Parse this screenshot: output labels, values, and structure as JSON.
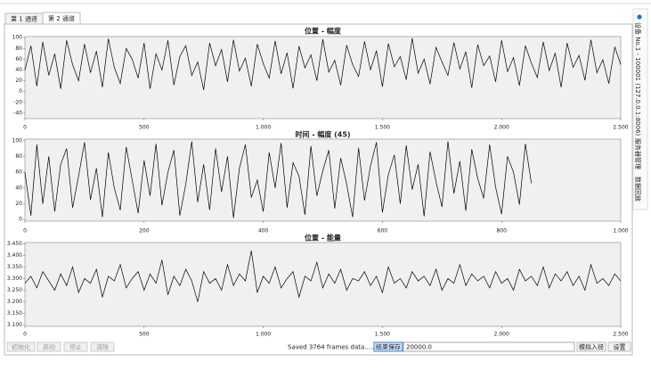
{
  "tabs": [
    "第 1 通道",
    "第 2 通道"
  ],
  "side_tabs": [
    "设备 No.1 - 100001 (127.0.0.1:8006)",
    "服务器管理",
    "数据回放"
  ],
  "toolbar": {
    "buttons": [
      "初始化",
      "启动",
      "停止",
      "清除"
    ],
    "status": "Saved 3764 frames data......",
    "save_button": "结束保存",
    "input": "20000.0",
    "simulate_button": "模拟入径",
    "settings_button": "设置"
  },
  "chart_data": [
    {
      "type": "line",
      "title": "位置 - 幅度",
      "color": "#000000",
      "x": [
        0,
        25,
        50,
        75,
        100,
        125,
        150,
        175,
        200,
        225,
        250,
        275,
        300,
        325,
        350,
        375,
        400,
        425,
        450,
        475,
        500,
        525,
        550,
        575,
        600,
        625,
        650,
        675,
        700,
        725,
        750,
        775,
        800,
        825,
        850,
        875,
        900,
        925,
        950,
        975,
        1000,
        1025,
        1050,
        1075,
        1100,
        1125,
        1150,
        1175,
        1200,
        1225,
        1250,
        1275,
        1300,
        1325,
        1350,
        1375,
        1400,
        1425,
        1450,
        1475,
        1500,
        1525,
        1550,
        1575,
        1600,
        1625,
        1650,
        1675,
        1700,
        1725,
        1750,
        1775,
        1800,
        1825,
        1850,
        1875,
        1900,
        1925,
        1950,
        1975,
        2000,
        2025,
        2050,
        2075,
        2100,
        2125,
        2150,
        2175,
        2200,
        2225,
        2250,
        2275,
        2300,
        2325,
        2350,
        2375,
        2400,
        2425,
        2450,
        2475,
        2500
      ],
      "values": [
        40,
        85,
        10,
        92,
        30,
        70,
        5,
        95,
        50,
        20,
        88,
        35,
        75,
        8,
        98,
        45,
        15,
        80,
        60,
        25,
        90,
        5,
        70,
        40,
        95,
        12,
        65,
        85,
        30,
        55,
        3,
        90,
        48,
        78,
        18,
        96,
        38,
        62,
        10,
        88,
        52,
        25,
        94,
        33,
        72,
        6,
        84,
        44,
        68,
        20,
        97,
        36,
        58,
        12,
        86,
        50,
        28,
        93,
        40,
        76,
        9,
        89,
        46,
        65,
        22,
        99,
        34,
        60,
        14,
        82,
        55,
        30,
        91,
        42,
        74,
        7,
        87,
        48,
        66,
        18,
        95,
        37,
        63,
        11,
        85,
        53,
        26,
        92,
        39,
        71,
        8,
        90,
        45,
        67,
        21,
        96,
        35,
        59,
        15,
        83,
        50
      ],
      "xlim": [
        0,
        2500
      ],
      "ylim": [
        -50,
        102
      ],
      "xticks": [
        0,
        500,
        {
          "value": 1000,
          "label": "1.000"
        },
        {
          "value": 1500,
          "label": "1.500"
        },
        {
          "value": 2000,
          "label": "2.000"
        },
        {
          "value": 2500,
          "label": "2.500"
        }
      ],
      "yticks": [
        -40,
        -20,
        0,
        20,
        40,
        60,
        80,
        100
      ]
    },
    {
      "type": "line",
      "title": "时间 - 幅度 (45)",
      "color": "#000000",
      "x": [
        0,
        10,
        20,
        30,
        40,
        50,
        60,
        70,
        80,
        90,
        100,
        110,
        120,
        130,
        140,
        150,
        160,
        170,
        180,
        190,
        200,
        210,
        220,
        230,
        240,
        250,
        260,
        270,
        280,
        290,
        300,
        310,
        320,
        330,
        340,
        350,
        360,
        370,
        380,
        390,
        400,
        410,
        420,
        430,
        440,
        450,
        460,
        470,
        480,
        490,
        500,
        510,
        520,
        530,
        540,
        550,
        560,
        570,
        580,
        590,
        600,
        610,
        620,
        630,
        640,
        650,
        660,
        670,
        680,
        690,
        700,
        710,
        720,
        730,
        740,
        750,
        760,
        770,
        780,
        790,
        800,
        810,
        820,
        830,
        840,
        850
      ],
      "values": [
        60,
        5,
        95,
        20,
        80,
        10,
        70,
        90,
        15,
        55,
        98,
        25,
        65,
        3,
        85,
        40,
        12,
        92,
        50,
        8,
        75,
        30,
        96,
        18,
        60,
        88,
        5,
        45,
        99,
        22,
        70,
        12,
        90,
        35,
        80,
        2,
        65,
        95,
        28,
        50,
        10,
        85,
        40,
        97,
        15,
        72,
        55,
        6,
        93,
        30,
        62,
        88,
        14,
        78,
        45,
        3,
        91,
        24,
        68,
        98,
        9,
        57,
        82,
        20,
        94,
        38,
        70,
        4,
        86,
        48,
        16,
        99,
        33,
        74,
        11,
        89,
        52,
        27,
        95,
        41,
        7,
        80,
        60,
        19,
        96,
        46
      ],
      "xlim": [
        0,
        1000
      ],
      "ylim": [
        -2,
        102
      ],
      "xticks": [
        0,
        200,
        400,
        600,
        800,
        {
          "value": 1000,
          "label": "1.000"
        }
      ],
      "yticks": [
        0,
        20,
        40,
        60,
        80,
        100
      ]
    },
    {
      "type": "line",
      "title": "位置 - 能量",
      "color": "#000000",
      "x": [
        0,
        25,
        50,
        75,
        100,
        125,
        150,
        175,
        200,
        225,
        250,
        275,
        300,
        325,
        350,
        375,
        400,
        425,
        450,
        475,
        500,
        525,
        550,
        575,
        600,
        625,
        650,
        675,
        700,
        725,
        750,
        775,
        800,
        825,
        850,
        875,
        900,
        925,
        950,
        975,
        1000,
        1025,
        1050,
        1075,
        1100,
        1125,
        1150,
        1175,
        1200,
        1225,
        1250,
        1275,
        1300,
        1325,
        1350,
        1375,
        1400,
        1425,
        1450,
        1475,
        1500,
        1525,
        1550,
        1575,
        1600,
        1625,
        1650,
        1675,
        1700,
        1725,
        1750,
        1775,
        1800,
        1825,
        1850,
        1875,
        1900,
        1925,
        1950,
        1975,
        2000,
        2025,
        2050,
        2075,
        2100,
        2125,
        2150,
        2175,
        2200,
        2225,
        2250,
        2275,
        2300,
        2325,
        2350,
        2375,
        2400,
        2425,
        2450,
        2475,
        2500
      ],
      "values": [
        3.28,
        3.31,
        3.26,
        3.33,
        3.29,
        3.25,
        3.32,
        3.27,
        3.35,
        3.24,
        3.3,
        3.28,
        3.34,
        3.22,
        3.31,
        3.29,
        3.36,
        3.26,
        3.3,
        3.33,
        3.25,
        3.32,
        3.28,
        3.38,
        3.23,
        3.31,
        3.27,
        3.34,
        3.29,
        3.2,
        3.33,
        3.28,
        3.3,
        3.25,
        3.36,
        3.27,
        3.32,
        3.29,
        3.42,
        3.24,
        3.31,
        3.28,
        3.35,
        3.26,
        3.3,
        3.33,
        3.22,
        3.31,
        3.29,
        3.37,
        3.26,
        3.32,
        3.28,
        3.34,
        3.25,
        3.3,
        3.29,
        3.33,
        3.27,
        3.31,
        3.24,
        3.35,
        3.28,
        3.3,
        3.26,
        3.33,
        3.29,
        3.31,
        3.27,
        3.34,
        3.25,
        3.3,
        3.28,
        3.36,
        3.27,
        3.32,
        3.29,
        3.31,
        3.26,
        3.33,
        3.28,
        3.3,
        3.25,
        3.34,
        3.29,
        3.31,
        3.27,
        3.35,
        3.26,
        3.32,
        3.29,
        3.33,
        3.27,
        3.31,
        3.25,
        3.36,
        3.28,
        3.3,
        3.27,
        3.32,
        3.29
      ],
      "xlim": [
        0,
        2500
      ],
      "ylim": [
        3.095,
        3.455
      ],
      "xticks": [
        0,
        500,
        {
          "value": 1000,
          "label": "1.000"
        },
        {
          "value": 1500,
          "label": "1.500"
        },
        {
          "value": 2000,
          "label": "2.000"
        },
        {
          "value": 2500,
          "label": "2.500"
        }
      ],
      "yticks": [
        {
          "value": 3.1,
          "label": "3.100"
        },
        {
          "value": 3.15,
          "label": "3.150"
        },
        {
          "value": 3.2,
          "label": "3.200"
        },
        {
          "value": 3.25,
          "label": "3.250"
        },
        {
          "value": 3.3,
          "label": "3.300"
        },
        {
          "value": 3.35,
          "label": "3.350"
        },
        {
          "value": 3.4,
          "label": "3.400"
        },
        {
          "value": 3.45,
          "label": "3.450"
        }
      ]
    }
  ]
}
